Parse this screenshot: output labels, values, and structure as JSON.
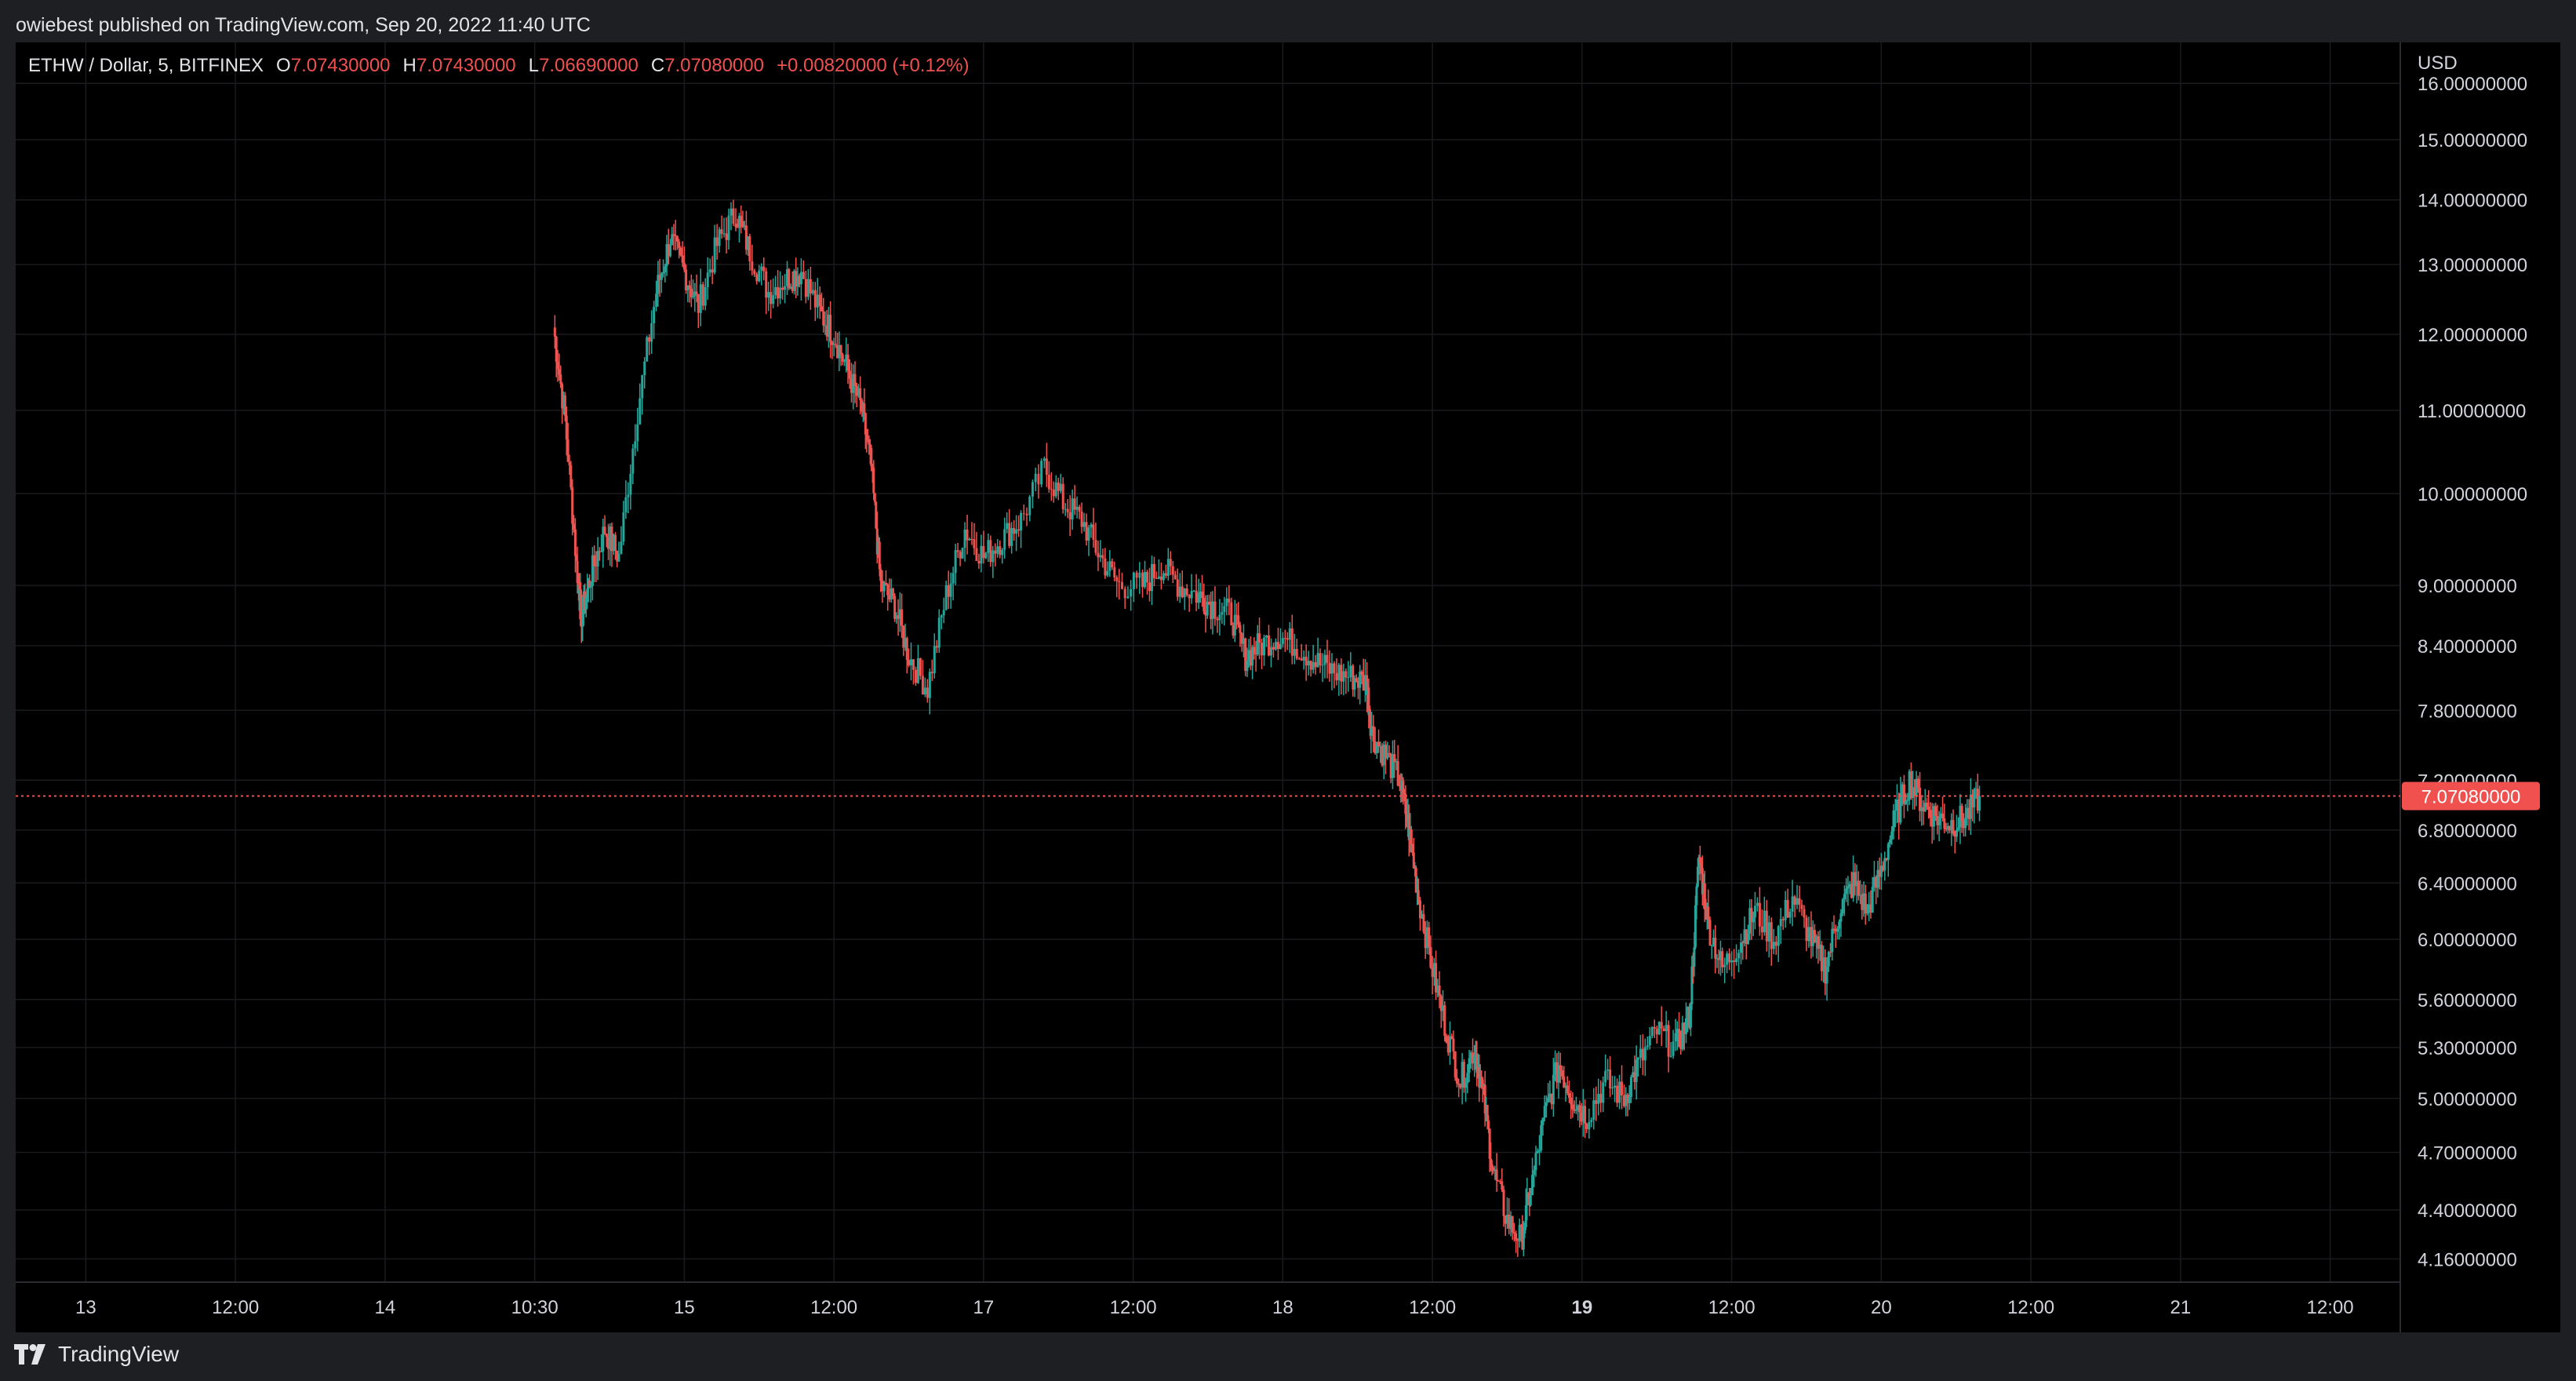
{
  "header": {
    "published_text": "owiebest published on TradingView.com, Sep 20, 2022 11:40 UTC"
  },
  "legend": {
    "symbol": "ETHW / Dollar, 5, BITFINEX",
    "open_label": "O",
    "open": "7.07430000",
    "high_label": "H",
    "high": "7.07430000",
    "low_label": "L",
    "low": "7.06690000",
    "close_label": "C",
    "close": "7.07080000",
    "change": "+0.00820000 (+0.12%)"
  },
  "price_axis": {
    "currency": "USD",
    "last_price_tag": "7.07080000"
  },
  "footer": {
    "brand": "TradingView"
  },
  "colors": {
    "up": "#26a69a",
    "down": "#ef5350",
    "background": "#000000",
    "grid": "#1a1b1f",
    "text": "#d1d4dc",
    "last_price": "#f0514f"
  },
  "chart_data": {
    "type": "candlestick",
    "scale": "log",
    "y_ticks": [
      "16.00000000",
      "15.00000000",
      "14.00000000",
      "13.00000000",
      "12.00000000",
      "11.00000000",
      "10.00000000",
      "9.00000000",
      "8.40000000",
      "7.80000000",
      "7.20000000",
      "6.80000000",
      "6.40000000",
      "6.00000000",
      "5.60000000",
      "5.30000000",
      "5.00000000",
      "4.70000000",
      "4.40000000",
      "4.16000000"
    ],
    "x_ticks": [
      "13",
      "12:00",
      "14",
      "10:30",
      "15",
      "12:00",
      "17",
      "12:00",
      "18",
      "12:00",
      "19",
      "12:00",
      "20",
      "12:00",
      "21",
      "12:00"
    ],
    "x_tick_bold": "19",
    "ylim": [
      4.08,
      16.5
    ],
    "xlim": [
      12.7,
      22.9
    ],
    "last_price": 7.0708,
    "series": [
      {
        "values": [
          [
            15.0,
            12.1
          ],
          [
            15.05,
            10.9
          ],
          [
            15.1,
            9.2
          ],
          [
            15.12,
            8.7
          ],
          [
            15.16,
            9.1
          ],
          [
            15.22,
            9.6
          ],
          [
            15.28,
            9.3
          ],
          [
            15.36,
            11.0
          ],
          [
            15.44,
            12.6
          ],
          [
            15.5,
            13.4
          ],
          [
            15.56,
            12.9
          ],
          [
            15.62,
            12.4
          ],
          [
            15.7,
            13.3
          ],
          [
            15.78,
            13.8
          ],
          [
            15.84,
            13.2
          ],
          [
            15.92,
            12.6
          ],
          [
            16.0,
            12.8
          ],
          [
            16.06,
            12.9
          ],
          [
            16.14,
            12.3
          ],
          [
            16.2,
            12.0
          ],
          [
            16.26,
            11.5
          ],
          [
            16.32,
            11.0
          ],
          [
            16.36,
            10.3
          ],
          [
            16.4,
            9.0
          ],
          [
            16.46,
            8.8
          ],
          [
            16.52,
            8.3
          ],
          [
            16.6,
            8.0
          ],
          [
            16.68,
            8.9
          ],
          [
            16.76,
            9.6
          ],
          [
            16.84,
            9.3
          ],
          [
            16.92,
            9.5
          ],
          [
            17.0,
            9.7
          ],
          [
            17.1,
            10.3
          ],
          [
            17.18,
            9.9
          ],
          [
            17.26,
            9.7
          ],
          [
            17.34,
            9.3
          ],
          [
            17.42,
            9.0
          ],
          [
            17.52,
            9.0
          ],
          [
            17.6,
            9.2
          ],
          [
            17.68,
            9.0
          ],
          [
            17.76,
            8.9
          ],
          [
            17.82,
            8.8
          ],
          [
            17.9,
            8.7
          ],
          [
            17.96,
            8.3
          ],
          [
            18.02,
            8.4
          ],
          [
            18.1,
            8.5
          ],
          [
            18.18,
            8.4
          ],
          [
            18.26,
            8.25
          ],
          [
            18.34,
            8.15
          ],
          [
            18.42,
            8.1
          ],
          [
            18.48,
            8.05
          ],
          [
            18.5,
            7.6
          ],
          [
            18.56,
            7.4
          ],
          [
            18.62,
            7.2
          ],
          [
            18.66,
            6.8
          ],
          [
            18.7,
            6.3
          ],
          [
            18.76,
            5.8
          ],
          [
            18.82,
            5.4
          ],
          [
            18.88,
            5.1
          ],
          [
            18.94,
            5.3
          ],
          [
            18.98,
            5.0
          ],
          [
            19.02,
            4.6
          ],
          [
            19.08,
            4.35
          ],
          [
            19.14,
            4.25
          ],
          [
            19.18,
            4.5
          ],
          [
            19.24,
            4.9
          ],
          [
            19.3,
            5.2
          ],
          [
            19.36,
            5.0
          ],
          [
            19.42,
            4.9
          ],
          [
            19.5,
            5.1
          ],
          [
            19.58,
            5.0
          ],
          [
            19.64,
            5.2
          ],
          [
            19.72,
            5.4
          ],
          [
            19.8,
            5.3
          ],
          [
            19.86,
            5.5
          ],
          [
            19.9,
            6.6
          ],
          [
            19.94,
            6.1
          ],
          [
            20.0,
            5.8
          ],
          [
            20.08,
            6.0
          ],
          [
            20.14,
            6.2
          ],
          [
            20.22,
            6.0
          ],
          [
            20.3,
            6.3
          ],
          [
            20.38,
            6.0
          ],
          [
            20.44,
            5.8
          ],
          [
            20.5,
            6.2
          ],
          [
            20.56,
            6.4
          ],
          [
            20.62,
            6.2
          ],
          [
            20.68,
            6.5
          ],
          [
            20.74,
            6.9
          ],
          [
            20.8,
            7.2
          ],
          [
            20.86,
            7.0
          ],
          [
            20.92,
            6.9
          ],
          [
            20.98,
            6.85
          ],
          [
            21.04,
            6.9
          ],
          [
            21.1,
            7.07
          ]
        ]
      }
    ]
  }
}
